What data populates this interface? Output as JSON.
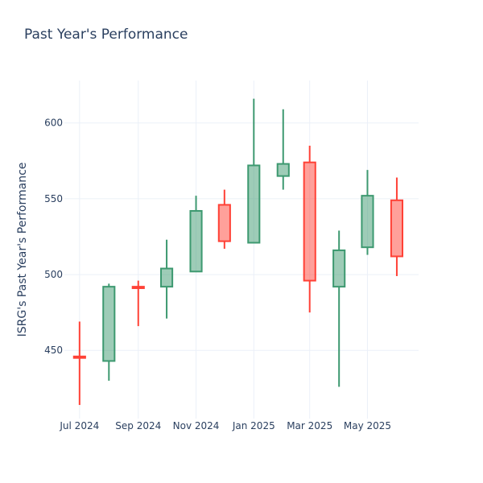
{
  "chart_data": {
    "type": "candlestick",
    "title": "Past Year's Performance",
    "ylabel": "ISRG's Past Year's Performance",
    "xlabel": "",
    "ylim": [
      405,
      628
    ],
    "yticks": [
      450,
      500,
      550,
      600
    ],
    "xlim": [
      "2024-06-15",
      "2025-06-24"
    ],
    "xticks": [
      {
        "date": "2024-07-01",
        "label": "Jul 2024"
      },
      {
        "date": "2024-09-01",
        "label": "Sep 2024"
      },
      {
        "date": "2024-11-01",
        "label": "Nov 2024"
      },
      {
        "date": "2025-01-01",
        "label": "Jan 2025"
      },
      {
        "date": "2025-03-01",
        "label": "Mar 2025"
      },
      {
        "date": "2025-05-01",
        "label": "May 2025"
      }
    ],
    "grid": true,
    "colors": {
      "increasing": "#3d9970",
      "decreasing": "#ff4136",
      "grid": "#ebf0f8",
      "text": "#2a3f5f"
    },
    "candles": [
      {
        "date": "2024-07-01",
        "open": 446,
        "high": 469,
        "low": 414,
        "close": 445
      },
      {
        "date": "2024-08-01",
        "open": 443,
        "high": 494,
        "low": 430,
        "close": 492
      },
      {
        "date": "2024-09-01",
        "open": 492,
        "high": 496,
        "low": 466,
        "close": 491
      },
      {
        "date": "2024-10-01",
        "open": 492,
        "high": 523,
        "low": 471,
        "close": 504
      },
      {
        "date": "2024-11-01",
        "open": 502,
        "high": 552,
        "low": 502,
        "close": 542
      },
      {
        "date": "2024-12-01",
        "open": 546,
        "high": 556,
        "low": 517,
        "close": 522
      },
      {
        "date": "2025-01-01",
        "open": 521,
        "high": 616,
        "low": 521,
        "close": 572
      },
      {
        "date": "2025-02-01",
        "open": 565,
        "high": 609,
        "low": 556,
        "close": 573
      },
      {
        "date": "2025-03-01",
        "open": 574,
        "high": 585,
        "low": 475,
        "close": 496
      },
      {
        "date": "2025-04-01",
        "open": 492,
        "high": 529,
        "low": 426,
        "close": 516
      },
      {
        "date": "2025-05-01",
        "open": 518,
        "high": 569,
        "low": 513,
        "close": 552
      },
      {
        "date": "2025-06-01",
        "open": 549,
        "high": 564,
        "low": 499,
        "close": 512
      }
    ]
  }
}
